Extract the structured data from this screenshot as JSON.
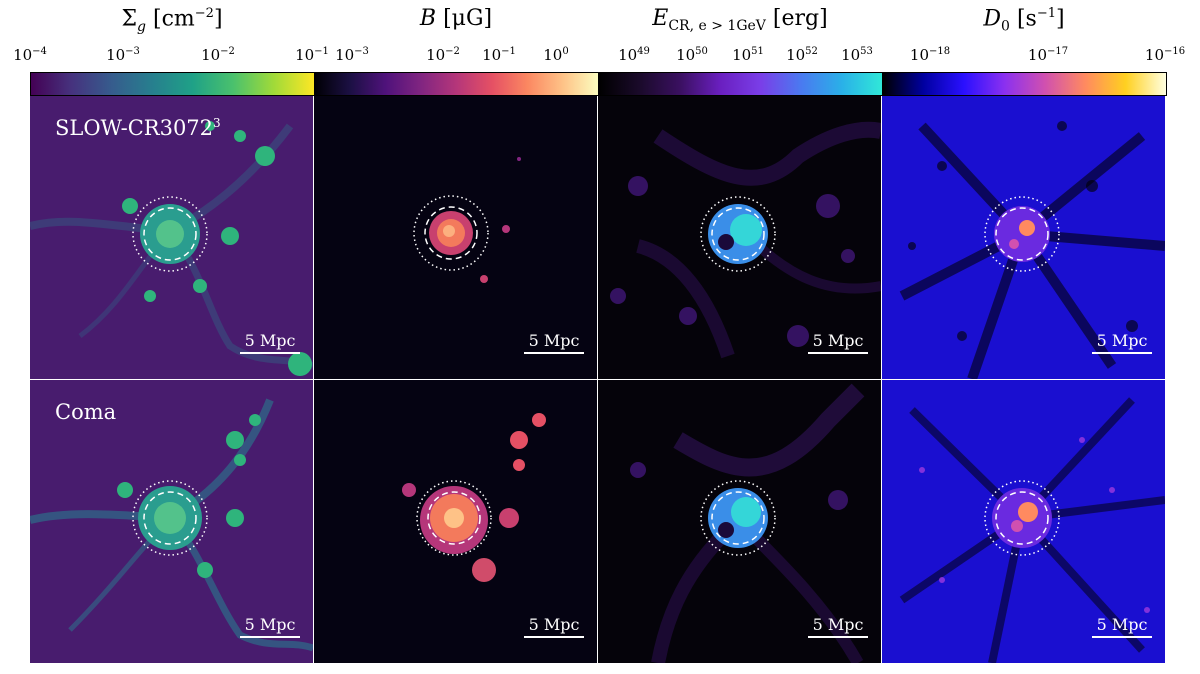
{
  "columns": [
    {
      "title_symbol": "Σ",
      "title_sub": "g",
      "title_unit": "[cm",
      "title_unit_exp": "−2",
      "title_close": "]",
      "ticks": [
        {
          "base": "10",
          "exp": "−4"
        },
        {
          "base": "10",
          "exp": "−3"
        },
        {
          "base": "10",
          "exp": "−2"
        },
        {
          "base": "10",
          "exp": "−1"
        }
      ],
      "colormap": "viridis"
    },
    {
      "title_symbol": "B",
      "title_sub": "",
      "title_unit": "[μG]",
      "title_unit_exp": "",
      "title_close": "",
      "ticks": [
        {
          "base": "10",
          "exp": "−3"
        },
        {
          "base": "10",
          "exp": "−2"
        },
        {
          "base": "10",
          "exp": "−1"
        },
        {
          "base": "10",
          "exp": "0"
        }
      ],
      "colormap": "magma"
    },
    {
      "title_symbol": "E",
      "title_sub": "CR, e > 1GeV",
      "title_unit": "[erg]",
      "title_unit_exp": "",
      "title_close": "",
      "ticks": [
        {
          "base": "10",
          "exp": "49"
        },
        {
          "base": "10",
          "exp": "50"
        },
        {
          "base": "10",
          "exp": "51"
        },
        {
          "base": "10",
          "exp": "52"
        },
        {
          "base": "10",
          "exp": "53"
        }
      ],
      "colormap": "cool-purple"
    },
    {
      "title_symbol": "D",
      "title_sub": "0",
      "title_unit": "[s",
      "title_unit_exp": "−1",
      "title_close": "]",
      "ticks": [
        {
          "base": "10",
          "exp": "−18"
        },
        {
          "base": "10",
          "exp": "−17"
        },
        {
          "base": "10",
          "exp": "−16"
        }
      ],
      "colormap": "gnuplot2"
    }
  ],
  "rows": [
    {
      "label": "SLOW-CR3072",
      "label_exp": "3"
    },
    {
      "label": "Coma",
      "label_exp": ""
    }
  ],
  "scalebar_label": "5 Mpc",
  "colors": {
    "viridis_bg": "#481c6e",
    "magma_bg": "#050312",
    "cool_bg": "#05030a",
    "gnuplot_bg": "#1a0fd0"
  }
}
